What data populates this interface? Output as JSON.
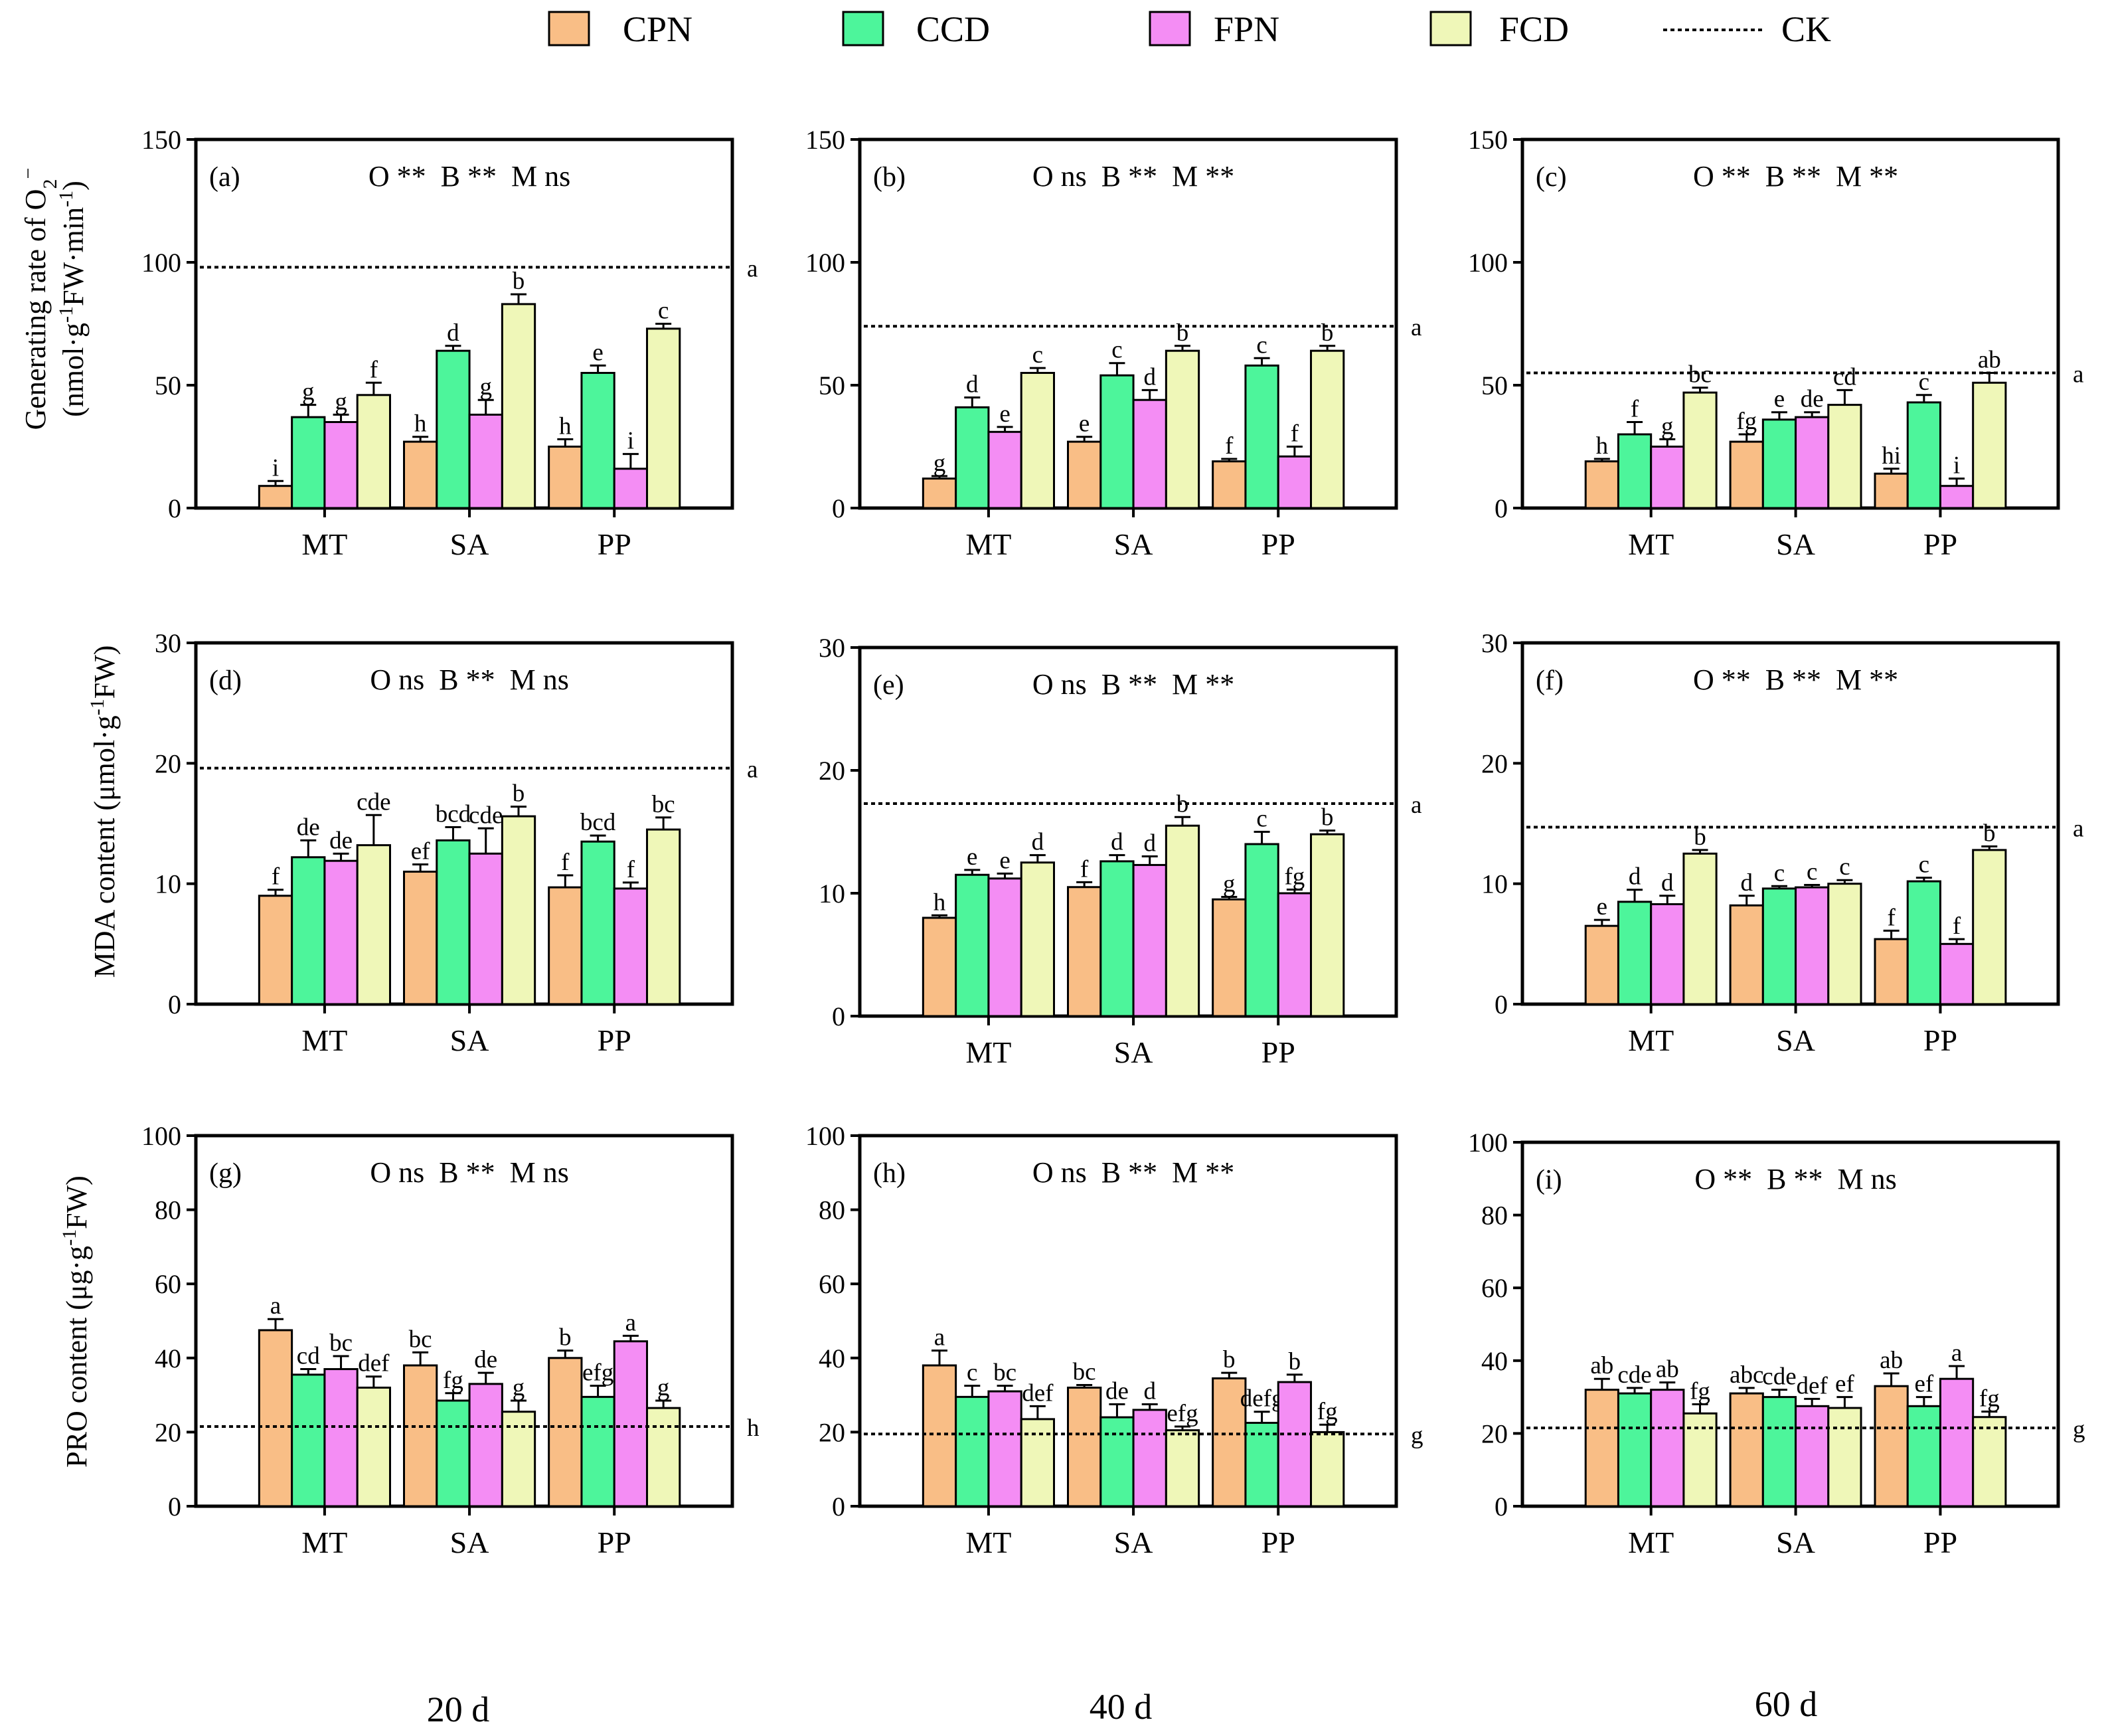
{
  "legend": [
    {
      "label": "CPN",
      "color": "#F9BE86"
    },
    {
      "label": "CCD",
      "color": "#4DF59B"
    },
    {
      "label": "FPN",
      "color": "#F48DF4"
    },
    {
      "label": "FCD",
      "color": "#EFF7B8"
    },
    {
      "label": "CK",
      "style": "dotted"
    }
  ],
  "column_labels": [
    "20 d",
    "40 d",
    "60 d"
  ],
  "row_ylabels": [
    {
      "line1": "Generating rate of O",
      "sub": "2",
      "sup": "−",
      "line2a": "(nmol·g",
      "sup2": "-1",
      "line2b": "FW·min",
      "sup3": "-1",
      "line2c": ")"
    },
    {
      "a": "MDA content (μmol·g",
      "sup": "-1",
      "b": "FW)"
    },
    {
      "a": "PRO content (μg·g",
      "sup": "-1",
      "b": "FW)"
    }
  ],
  "chart_data": [
    {
      "type": "bar",
      "panel": "(a)",
      "annotation": "O **  B **  M ns",
      "categories": [
        "MT",
        "SA",
        "PP"
      ],
      "ylim": [
        0,
        150
      ],
      "yticks": [
        0,
        50,
        100,
        150
      ],
      "ck": 98,
      "ck_letter": "a",
      "series": [
        {
          "name": "CPN",
          "values": [
            9,
            27,
            25
          ],
          "errors": [
            2,
            2,
            3
          ],
          "letters": [
            "i",
            "h",
            "h"
          ]
        },
        {
          "name": "CCD",
          "values": [
            37,
            64,
            55
          ],
          "errors": [
            5,
            2,
            3
          ],
          "letters": [
            "g",
            "d",
            "e"
          ]
        },
        {
          "name": "FPN",
          "values": [
            35,
            38,
            16
          ],
          "errors": [
            3,
            6,
            6
          ],
          "letters": [
            "g",
            "g",
            "i"
          ]
        },
        {
          "name": "FCD",
          "values": [
            46,
            83,
            73
          ],
          "errors": [
            5,
            4,
            2
          ],
          "letters": [
            "f",
            "b",
            "c"
          ]
        }
      ]
    },
    {
      "type": "bar",
      "panel": "(b)",
      "annotation": "O ns  B **  M **",
      "categories": [
        "MT",
        "SA",
        "PP"
      ],
      "ylim": [
        0,
        150
      ],
      "yticks": [
        0,
        50,
        100,
        150
      ],
      "ck": 74,
      "ck_letter": "a",
      "series": [
        {
          "name": "CPN",
          "values": [
            12,
            27,
            19
          ],
          "errors": [
            1,
            2,
            1
          ],
          "letters": [
            "g",
            "e",
            "f"
          ]
        },
        {
          "name": "CCD",
          "values": [
            41,
            54,
            58
          ],
          "errors": [
            4,
            5,
            3
          ],
          "letters": [
            "d",
            "c",
            "c"
          ]
        },
        {
          "name": "FPN",
          "values": [
            31,
            44,
            21
          ],
          "errors": [
            2,
            4,
            4
          ],
          "letters": [
            "e",
            "d",
            "f"
          ]
        },
        {
          "name": "FCD",
          "values": [
            55,
            64,
            64
          ],
          "errors": [
            2,
            2,
            2
          ],
          "letters": [
            "c",
            "b",
            "b"
          ]
        }
      ]
    },
    {
      "type": "bar",
      "panel": "(c)",
      "annotation": "O **  B **  M **",
      "categories": [
        "MT",
        "SA",
        "PP"
      ],
      "ylim": [
        0,
        150
      ],
      "yticks": [
        0,
        50,
        100,
        150
      ],
      "ck": 55,
      "ck_letter": "a",
      "series": [
        {
          "name": "CPN",
          "values": [
            19,
            27,
            14
          ],
          "errors": [
            1,
            3,
            2
          ],
          "letters": [
            "h",
            "fg",
            "hi"
          ]
        },
        {
          "name": "CCD",
          "values": [
            30,
            36,
            43
          ],
          "errors": [
            5,
            3,
            3
          ],
          "letters": [
            "f",
            "e",
            "c"
          ]
        },
        {
          "name": "FPN",
          "values": [
            25,
            37,
            9
          ],
          "errors": [
            3,
            2,
            3
          ],
          "letters": [
            "g",
            "de",
            "i"
          ]
        },
        {
          "name": "FCD",
          "values": [
            47,
            42,
            51
          ],
          "errors": [
            2,
            6,
            4
          ],
          "letters": [
            "bc",
            "cd",
            "ab"
          ]
        }
      ]
    },
    {
      "type": "bar",
      "panel": "(d)",
      "annotation": "O ns  B **  M ns",
      "categories": [
        "MT",
        "SA",
        "PP"
      ],
      "ylim": [
        0,
        30
      ],
      "yticks": [
        0,
        10,
        20,
        30
      ],
      "ck": 19.6,
      "ck_letter": "a",
      "series": [
        {
          "name": "CPN",
          "values": [
            9.0,
            11.0,
            9.7
          ],
          "errors": [
            0.5,
            0.6,
            1.0
          ],
          "letters": [
            "f",
            "ef",
            "f"
          ]
        },
        {
          "name": "CCD",
          "values": [
            12.2,
            13.6,
            13.5
          ],
          "errors": [
            1.4,
            1.1,
            0.5
          ],
          "letters": [
            "de",
            "bcd",
            "bcd"
          ]
        },
        {
          "name": "FPN",
          "values": [
            11.9,
            12.5,
            9.6
          ],
          "errors": [
            0.6,
            2.1,
            0.5
          ],
          "letters": [
            "de",
            "cde",
            "f"
          ]
        },
        {
          "name": "FCD",
          "values": [
            13.2,
            15.6,
            14.5
          ],
          "errors": [
            2.5,
            0.8,
            1.0
          ],
          "letters": [
            "cde",
            "b",
            "bc"
          ]
        }
      ]
    },
    {
      "type": "bar",
      "panel": "(e)",
      "annotation": "O ns  B **  M **",
      "categories": [
        "MT",
        "SA",
        "PP"
      ],
      "ylim": [
        0,
        30
      ],
      "yticks": [
        0,
        10,
        20,
        30
      ],
      "ck": 17.3,
      "ck_letter": "a",
      "series": [
        {
          "name": "CPN",
          "values": [
            8.0,
            10.5,
            9.5
          ],
          "errors": [
            0.2,
            0.4,
            0.2
          ],
          "letters": [
            "h",
            "f",
            "g"
          ]
        },
        {
          "name": "CCD",
          "values": [
            11.5,
            12.6,
            14.0
          ],
          "errors": [
            0.4,
            0.5,
            1.0
          ],
          "letters": [
            "e",
            "d",
            "c"
          ]
        },
        {
          "name": "FPN",
          "values": [
            11.2,
            12.3,
            10.0
          ],
          "errors": [
            0.4,
            0.7,
            0.3
          ],
          "letters": [
            "e",
            "d",
            "fg"
          ]
        },
        {
          "name": "FCD",
          "values": [
            12.5,
            15.5,
            14.8
          ],
          "errors": [
            0.6,
            0.7,
            0.3
          ],
          "letters": [
            "d",
            "b",
            "b"
          ]
        }
      ]
    },
    {
      "type": "bar",
      "panel": "(f)",
      "annotation": "O **  B **  M **",
      "categories": [
        "MT",
        "SA",
        "PP"
      ],
      "ylim": [
        0,
        30
      ],
      "yticks": [
        0,
        10,
        20,
        30
      ],
      "ck": 14.7,
      "ck_letter": "a",
      "series": [
        {
          "name": "CPN",
          "values": [
            6.5,
            8.2,
            5.4
          ],
          "errors": [
            0.5,
            0.8,
            0.7
          ],
          "letters": [
            "e",
            "d",
            "f"
          ]
        },
        {
          "name": "CCD",
          "values": [
            8.5,
            9.6,
            10.2
          ],
          "errors": [
            1.0,
            0.2,
            0.3
          ],
          "letters": [
            "d",
            "c",
            "c"
          ]
        },
        {
          "name": "FPN",
          "values": [
            8.3,
            9.7,
            5.0
          ],
          "errors": [
            0.7,
            0.2,
            0.4
          ],
          "letters": [
            "d",
            "c",
            "f"
          ]
        },
        {
          "name": "FCD",
          "values": [
            12.5,
            10.0,
            12.8
          ],
          "errors": [
            0.3,
            0.3,
            0.3
          ],
          "letters": [
            "b",
            "c",
            "b"
          ]
        }
      ]
    },
    {
      "type": "bar",
      "panel": "(g)",
      "annotation": "O ns  B **  M ns",
      "categories": [
        "MT",
        "SA",
        "PP"
      ],
      "ylim": [
        0,
        100
      ],
      "yticks": [
        0,
        20,
        40,
        60,
        80,
        100
      ],
      "ck": 21.5,
      "ck_letter": "h",
      "series": [
        {
          "name": "CPN",
          "values": [
            47.5,
            38,
            40
          ],
          "errors": [
            3,
            3.5,
            2
          ],
          "letters": [
            "a",
            "bc",
            "b"
          ]
        },
        {
          "name": "CCD",
          "values": [
            35.5,
            28.5,
            29.5
          ],
          "errors": [
            1.5,
            2,
            3
          ],
          "letters": [
            "cd",
            "fg",
            "efg"
          ]
        },
        {
          "name": "FPN",
          "values": [
            37,
            33,
            44.5
          ],
          "errors": [
            3.5,
            3,
            1.5
          ],
          "letters": [
            "bc",
            "de",
            "a"
          ]
        },
        {
          "name": "FCD",
          "values": [
            32,
            25.5,
            26.5
          ],
          "errors": [
            3,
            3,
            2
          ],
          "letters": [
            "def",
            "g",
            "g"
          ]
        }
      ]
    },
    {
      "type": "bar",
      "panel": "(h)",
      "annotation": "O ns  B **  M **",
      "categories": [
        "MT",
        "SA",
        "PP"
      ],
      "ylim": [
        0,
        100
      ],
      "yticks": [
        0,
        20,
        40,
        60,
        80,
        100
      ],
      "ck": 19.5,
      "ck_letter": "g",
      "series": [
        {
          "name": "CPN",
          "values": [
            38,
            32,
            34.5
          ],
          "errors": [
            4,
            0.7,
            1.5
          ],
          "letters": [
            "a",
            "bc",
            "b"
          ]
        },
        {
          "name": "CCD",
          "values": [
            29.5,
            24,
            22.5
          ],
          "errors": [
            3,
            3.5,
            3
          ],
          "letters": [
            "c",
            "de",
            "defg"
          ]
        },
        {
          "name": "FPN",
          "values": [
            31,
            26,
            33.5
          ],
          "errors": [
            1.5,
            1.5,
            2
          ],
          "letters": [
            "bc",
            "d",
            "b"
          ]
        },
        {
          "name": "FCD",
          "values": [
            23.5,
            20.5,
            20
          ],
          "errors": [
            3.5,
            1,
            2
          ],
          "letters": [
            "def",
            "efg",
            "fg"
          ]
        }
      ]
    },
    {
      "type": "bar",
      "panel": "(i)",
      "annotation": "O **  B **  M ns",
      "categories": [
        "MT",
        "SA",
        "PP"
      ],
      "ylim": [
        0,
        100
      ],
      "yticks": [
        0,
        20,
        40,
        60,
        80,
        100
      ],
      "ck": 21.5,
      "ck_letter": "g",
      "series": [
        {
          "name": "CPN",
          "values": [
            32,
            31,
            33
          ],
          "errors": [
            3,
            1.5,
            3.5
          ],
          "letters": [
            "ab",
            "abc",
            "ab"
          ]
        },
        {
          "name": "CCD",
          "values": [
            31,
            30,
            27.5
          ],
          "errors": [
            1.5,
            2,
            2.5
          ],
          "letters": [
            "cde",
            "cde",
            "ef"
          ]
        },
        {
          "name": "FPN",
          "values": [
            32,
            27.5,
            35
          ],
          "errors": [
            2,
            2,
            3.5
          ],
          "letters": [
            "ab",
            "def",
            "a"
          ]
        },
        {
          "name": "FCD",
          "values": [
            25.5,
            27,
            24.5
          ],
          "errors": [
            2.5,
            3,
            1.5
          ],
          "letters": [
            "fg",
            "ef",
            "fg"
          ]
        }
      ]
    }
  ]
}
